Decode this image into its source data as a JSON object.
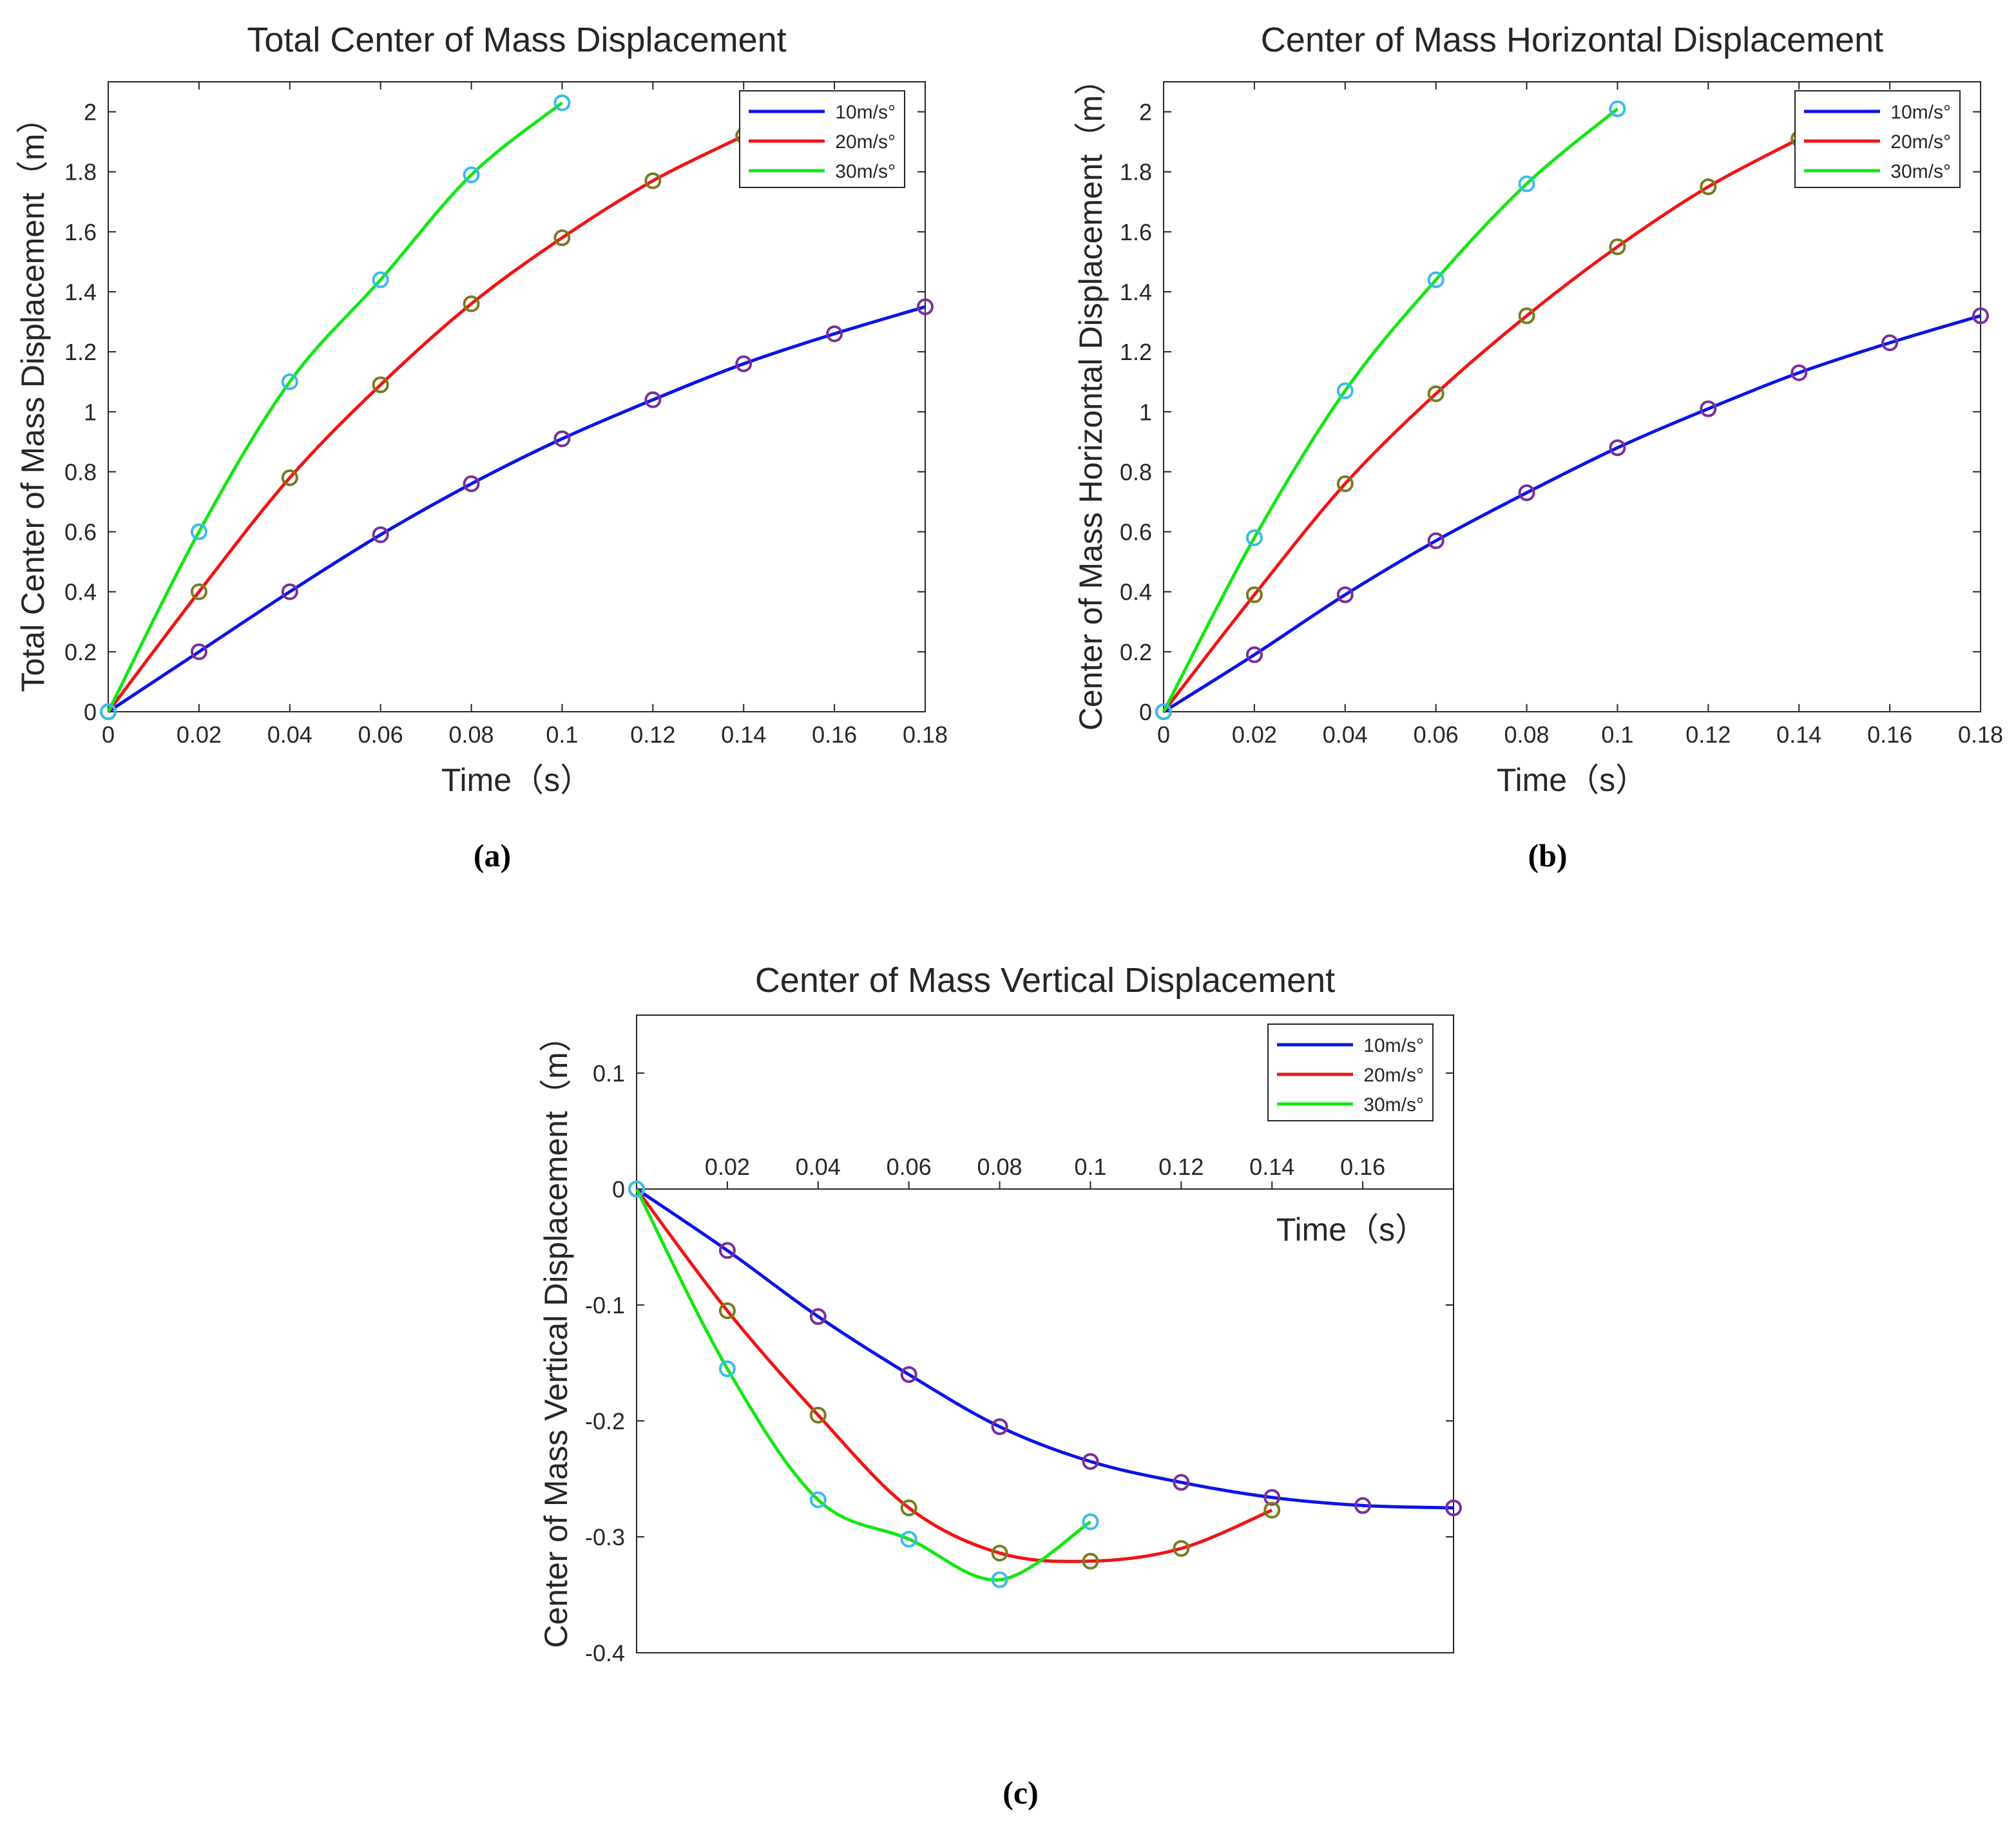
{
  "captions": {
    "a": "(a)",
    "b": "(b)",
    "c": "(c)"
  },
  "colors": {
    "10m/s°": "#0a14e6",
    "20m/s°": "#f01414",
    "30m/s°": "#14e614",
    "marker_blue_series": "#7a2f9a",
    "marker_red_series": "#7a7a1e",
    "marker_green_series": "#3cbce6"
  },
  "chart_data": [
    {
      "id": "a",
      "type": "line",
      "title": "Total Center of Mass Displacement",
      "xlabel": "Time（s）",
      "ylabel": "Total Center of Mass Displacement（m）",
      "xlim": [
        0,
        0.18
      ],
      "ylim": [
        0,
        2.1
      ],
      "xticks": [
        0,
        0.02,
        0.04,
        0.06,
        0.08,
        0.1,
        0.12,
        0.14,
        0.16,
        0.18
      ],
      "yticks": [
        0,
        0.2,
        0.4,
        0.6,
        0.8,
        1,
        1.2,
        1.4,
        1.6,
        1.8,
        2
      ],
      "legend": "top-right",
      "series": [
        {
          "name": "10m/s°",
          "x": [
            0,
            0.02,
            0.04,
            0.06,
            0.08,
            0.1,
            0.12,
            0.14,
            0.16,
            0.18
          ],
          "y": [
            0,
            0.2,
            0.4,
            0.59,
            0.76,
            0.91,
            1.04,
            1.16,
            1.26,
            1.35
          ]
        },
        {
          "name": "20m/s°",
          "x": [
            0,
            0.02,
            0.04,
            0.06,
            0.08,
            0.1,
            0.12,
            0.14
          ],
          "y": [
            0,
            0.4,
            0.78,
            1.09,
            1.36,
            1.58,
            1.77,
            1.92
          ]
        },
        {
          "name": "30m/s°",
          "x": [
            0,
            0.02,
            0.04,
            0.06,
            0.08,
            0.1
          ],
          "y": [
            0,
            0.6,
            1.1,
            1.44,
            1.79,
            2.03
          ]
        }
      ]
    },
    {
      "id": "b",
      "type": "line",
      "title": "Center of Mass Horizontal Displacement",
      "xlabel": "Time（s）",
      "ylabel": "Center of Mass Horizontal Displacement（m）",
      "xlim": [
        0,
        0.18
      ],
      "ylim": [
        0,
        2.1
      ],
      "xticks": [
        0,
        0.02,
        0.04,
        0.06,
        0.08,
        0.1,
        0.12,
        0.14,
        0.16,
        0.18
      ],
      "yticks": [
        0,
        0.2,
        0.4,
        0.6,
        0.8,
        1,
        1.2,
        1.4,
        1.6,
        1.8,
        2
      ],
      "legend": "top-right",
      "series": [
        {
          "name": "10m/s°",
          "x": [
            0,
            0.02,
            0.04,
            0.06,
            0.08,
            0.1,
            0.12,
            0.14,
            0.16,
            0.18
          ],
          "y": [
            0,
            0.19,
            0.39,
            0.57,
            0.73,
            0.88,
            1.01,
            1.13,
            1.23,
            1.32
          ]
        },
        {
          "name": "20m/s°",
          "x": [
            0,
            0.02,
            0.04,
            0.06,
            0.08,
            0.1,
            0.12,
            0.14
          ],
          "y": [
            0,
            0.39,
            0.76,
            1.06,
            1.32,
            1.55,
            1.75,
            1.91
          ]
        },
        {
          "name": "30m/s°",
          "x": [
            0,
            0.02,
            0.04,
            0.06,
            0.08,
            0.1
          ],
          "y": [
            0,
            0.58,
            1.07,
            1.44,
            1.76,
            2.01
          ]
        }
      ]
    },
    {
      "id": "c",
      "type": "line",
      "title": "Center of Mass Vertical Displacement",
      "xlabel": "Time（s）",
      "ylabel": "Center of Mass Vertical Displacement（m）",
      "xlim": [
        0,
        0.18
      ],
      "ylim": [
        -0.4,
        0.15
      ],
      "xticks": [
        0.02,
        0.04,
        0.06,
        0.08,
        0.1,
        0.12,
        0.14,
        0.16
      ],
      "yticks": [
        -0.4,
        -0.3,
        -0.2,
        -0.1,
        0,
        0.1
      ],
      "x_axis_at_zero": true,
      "legend": "top-right",
      "series": [
        {
          "name": "10m/s°",
          "x": [
            0,
            0.02,
            0.04,
            0.06,
            0.08,
            0.1,
            0.12,
            0.14,
            0.16,
            0.18
          ],
          "y": [
            0,
            -0.053,
            -0.11,
            -0.16,
            -0.205,
            -0.235,
            -0.253,
            -0.266,
            -0.273,
            -0.275
          ]
        },
        {
          "name": "20m/s°",
          "x": [
            0,
            0.02,
            0.04,
            0.06,
            0.08,
            0.1,
            0.12,
            0.14
          ],
          "y": [
            0,
            -0.105,
            -0.195,
            -0.275,
            -0.314,
            -0.321,
            -0.31,
            -0.277
          ]
        },
        {
          "name": "30m/s°",
          "x": [
            0,
            0.02,
            0.04,
            0.06,
            0.08,
            0.1
          ],
          "y": [
            0,
            -0.155,
            -0.268,
            -0.302,
            -0.337,
            -0.287
          ]
        }
      ]
    }
  ]
}
